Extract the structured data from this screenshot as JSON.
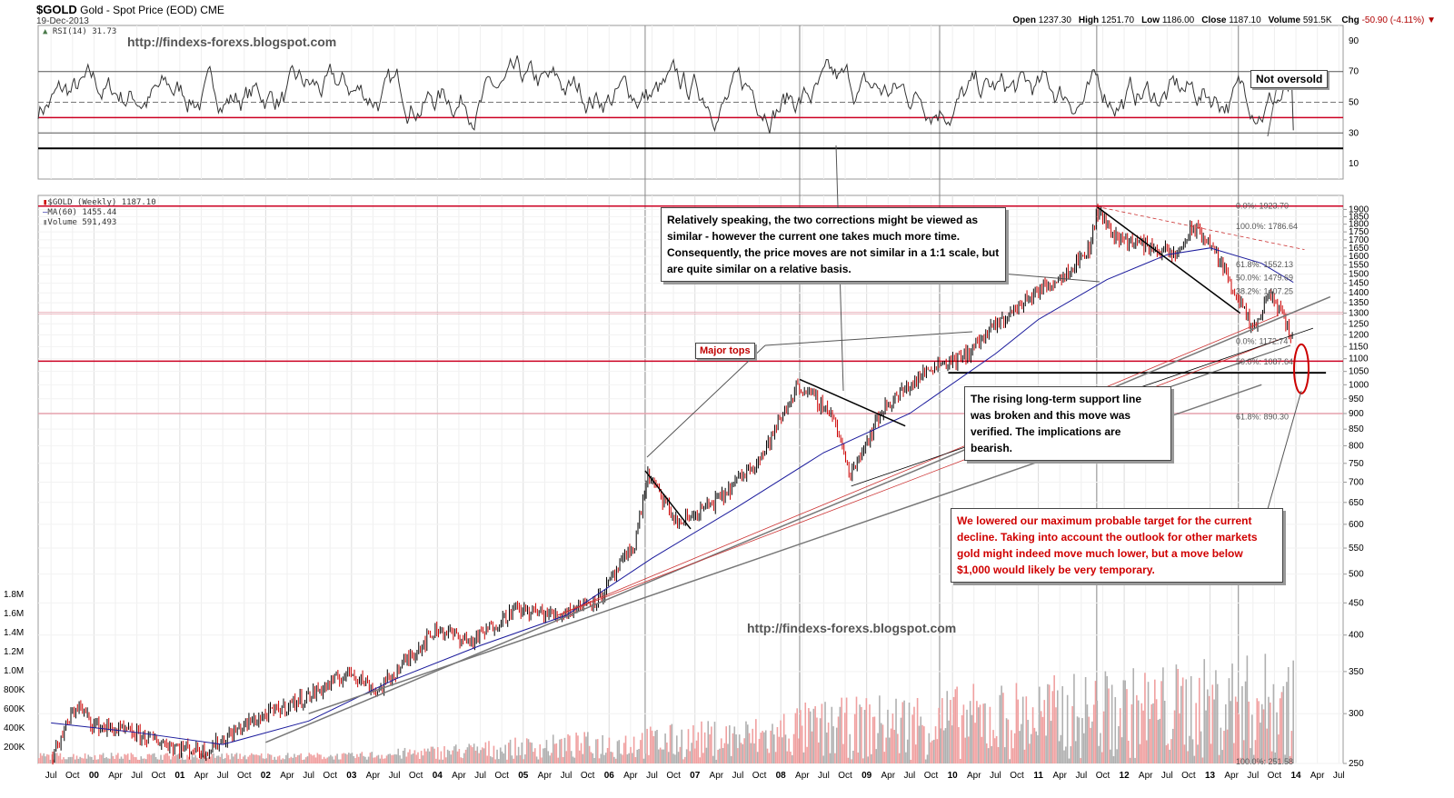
{
  "header": {
    "symbol": "$GOLD",
    "name": "Gold - Spot Price (EOD)",
    "exchange": "CME",
    "date": "19-Dec-2013",
    "quote": [
      {
        "k": "Open",
        "v": "1237.30"
      },
      {
        "k": "High",
        "v": "1251.70"
      },
      {
        "k": "Low",
        "v": "1186.00"
      },
      {
        "k": "Close",
        "v": "1187.10"
      },
      {
        "k": "Volume",
        "v": "591.5K"
      }
    ],
    "chg_label": "Chg",
    "chg_value": "-50.90 (-4.11%)",
    "chg_arrow": "▼"
  },
  "watermark": "http://findexs-forexs.blogspot.com",
  "rsi_legend": "RSI(14) 31.73",
  "price_legend": [
    "$GOLD (Weekly) 1187.10",
    "MA(60) 1455.44",
    "Volume 591,493"
  ],
  "annotations": {
    "not_oversold": "Not oversold",
    "major_tops": "Major tops",
    "corrections": "Relatively speaking, the two corrections might be viewed as similar - however the current one takes much more time. Consequently, the price moves are not similar in a 1:1 scale, but are quite similar on a relative basis.",
    "support": "The rising long-term support line was broken and this move was verified. The implications are bearish.",
    "target": "We lowered our maximum probable target for the current decline. Taking into account the outlook for other markets gold might indeed move much lower, but a move below $1,000 would likely be very temporary."
  },
  "fib_labels": [
    {
      "label": "0.0%: 1923.70",
      "price": 1923.7
    },
    {
      "label": "100.0%: 1786.64",
      "price": 1786.64
    },
    {
      "label": "61.8%: 1552.13",
      "price": 1552.13
    },
    {
      "label": "50.0%: 1479.69",
      "price": 1479.69
    },
    {
      "label": "38.2%: 1407.25",
      "price": 1407.25
    },
    {
      "label": "0.0%: 1172.74",
      "price": 1172.74
    },
    {
      "label": "50.0%: 1087.64",
      "price": 1087.64
    },
    {
      "label": "61.8%: 890.30",
      "price": 890.3
    },
    {
      "label": "100.0%: 251.58",
      "price": 251.58
    }
  ],
  "colors": {
    "price_up": "#000000",
    "price_down": "#cc0000",
    "ma": "#1a1a9c",
    "horizontal": "#cc0022",
    "volume": "#aaaaaa",
    "rsi_fill": "#4a7a4a"
  },
  "chart_data": [
    {
      "type": "line",
      "title": "RSI(14)",
      "ylim": [
        0,
        100
      ],
      "yticks": [
        10,
        30,
        50,
        70,
        90
      ],
      "levels": [
        {
          "value": 70,
          "style": "solid"
        },
        {
          "value": 50,
          "style": "dashed"
        },
        {
          "value": 40,
          "style": "solid-red"
        },
        {
          "value": 30,
          "style": "solid"
        },
        {
          "value": 20,
          "style": "solid-black-bold"
        }
      ],
      "last_value": 31.73
    },
    {
      "type": "line",
      "title": "$GOLD (Weekly)",
      "scale": "log",
      "ylim": [
        250,
        2000
      ],
      "yticks_right": [
        250,
        300,
        350,
        400,
        450,
        500,
        550,
        600,
        650,
        700,
        750,
        800,
        850,
        900,
        950,
        1000,
        1050,
        1100,
        1150,
        1200,
        1250,
        1300,
        1350,
        1400,
        1450,
        1500,
        1550,
        1600,
        1650,
        1700,
        1750,
        1800,
        1850,
        1900
      ],
      "x_labels": [
        "Jul",
        "Oct",
        "00",
        "Apr",
        "Jul",
        "Oct",
        "01",
        "Apr",
        "Jul",
        "Oct",
        "02",
        "Apr",
        "Jul",
        "Oct",
        "03",
        "Apr",
        "Jul",
        "Oct",
        "04",
        "Apr",
        "Jul",
        "Oct",
        "05",
        "Apr",
        "Jul",
        "Oct",
        "06",
        "Apr",
        "Jul",
        "Oct",
        "07",
        "Apr",
        "Jul",
        "Oct",
        "08",
        "Apr",
        "Jul",
        "Oct",
        "09",
        "Apr",
        "Jul",
        "Oct",
        "10",
        "Apr",
        "Jul",
        "Oct",
        "11",
        "Apr",
        "Jul",
        "Oct",
        "12",
        "Apr",
        "Jul",
        "Oct",
        "13",
        "Apr",
        "Jul",
        "Oct",
        "14",
        "Apr",
        "Jul"
      ],
      "series": [
        {
          "name": "$GOLD",
          "x": [
            1999.5,
            1999.8,
            2000.0,
            2000.5,
            2001.0,
            2001.3,
            2001.8,
            2002.5,
            2003.0,
            2003.3,
            2003.8,
            2004.0,
            2004.4,
            2004.9,
            2005.4,
            2005.9,
            2006.3,
            2006.45,
            2006.8,
            2007.3,
            2007.8,
            2008.2,
            2008.6,
            2008.8,
            2009.2,
            2009.8,
            2010.1,
            2010.5,
            2010.9,
            2011.3,
            2011.6,
            2011.68,
            2011.9,
            2012.3,
            2012.6,
            2012.8,
            2013.0,
            2013.3,
            2013.5,
            2013.7,
            2013.97
          ],
          "values": [
            255,
            310,
            288,
            278,
            265,
            262,
            290,
            320,
            350,
            325,
            385,
            410,
            390,
            440,
            430,
            460,
            560,
            720,
            600,
            660,
            780,
            1000,
            900,
            720,
            920,
            1080,
            1100,
            1240,
            1380,
            1500,
            1650,
            1900,
            1720,
            1660,
            1600,
            1780,
            1680,
            1400,
            1210,
            1400,
            1190
          ]
        },
        {
          "name": "MA(60)",
          "x": [
            1999.5,
            2000.5,
            2001.5,
            2002.5,
            2003.5,
            2004.5,
            2005.5,
            2006.5,
            2007.5,
            2008.5,
            2009.5,
            2010.5,
            2011.0,
            2011.8,
            2012.5,
            2013.0,
            2013.6,
            2013.97
          ],
          "values": [
            290,
            280,
            268,
            292,
            340,
            385,
            430,
            530,
            640,
            780,
            900,
            1120,
            1270,
            1470,
            1610,
            1650,
            1560,
            1455
          ]
        },
        {
          "name": "Volume",
          "values": [
            591493
          ]
        }
      ],
      "levels": [
        1923.7,
        1300,
        1090,
        900
      ],
      "support_level": 1045
    }
  ]
}
